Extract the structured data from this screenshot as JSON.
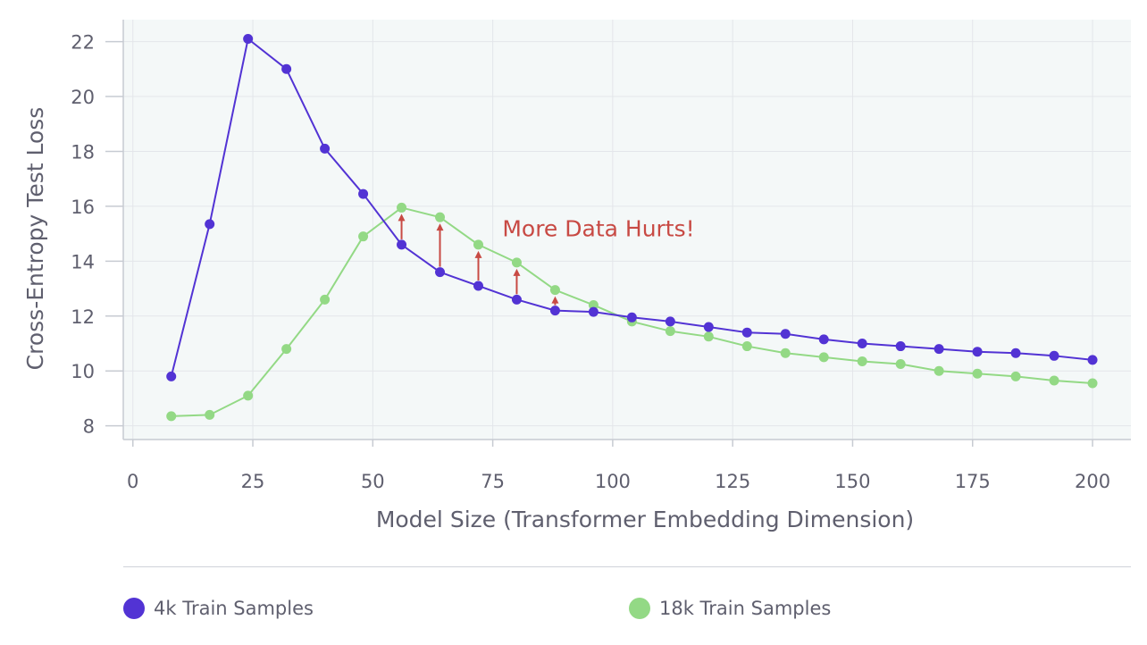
{
  "chart_data": {
    "type": "line",
    "xlabel": "Model Size (Transformer Embedding Dimension)",
    "ylabel": "Cross-Entropy Test Loss",
    "xlim": [
      -2,
      208
    ],
    "ylim": [
      7.5,
      22.8
    ],
    "xticks": [
      0,
      25,
      50,
      75,
      100,
      125,
      150,
      175,
      200
    ],
    "yticks": [
      8,
      10,
      12,
      14,
      16,
      18,
      20,
      22
    ],
    "grid": true,
    "legend_position": "bottom",
    "x": [
      8,
      16,
      24,
      32,
      40,
      48,
      56,
      64,
      72,
      80,
      88,
      96,
      104,
      112,
      120,
      128,
      136,
      144,
      152,
      160,
      168,
      176,
      184,
      192,
      200
    ],
    "series": [
      {
        "name": "4k Train Samples",
        "color": "#5233d4",
        "values": [
          9.8,
          15.35,
          22.1,
          21.0,
          18.1,
          16.45,
          14.6,
          13.6,
          13.1,
          12.6,
          12.2,
          12.15,
          11.95,
          11.8,
          11.6,
          11.4,
          11.35,
          11.15,
          11.0,
          10.9,
          10.8,
          10.7,
          10.65,
          10.55,
          10.4
        ]
      },
      {
        "name": "18k Train Samples",
        "color": "#93d985",
        "values": [
          8.35,
          8.4,
          9.1,
          10.8,
          12.6,
          14.9,
          15.95,
          15.6,
          14.6,
          13.95,
          12.95,
          12.4,
          11.8,
          11.45,
          11.25,
          10.9,
          10.65,
          10.5,
          10.35,
          10.25,
          10.0,
          9.9,
          9.8,
          9.65,
          9.55
        ]
      }
    ],
    "annotation": {
      "text": "More Data Hurts!",
      "color": "#c84a44",
      "anchor_x": 77,
      "anchor_y": 14.9,
      "arrows_x": [
        56,
        64,
        72,
        80,
        88
      ]
    }
  }
}
